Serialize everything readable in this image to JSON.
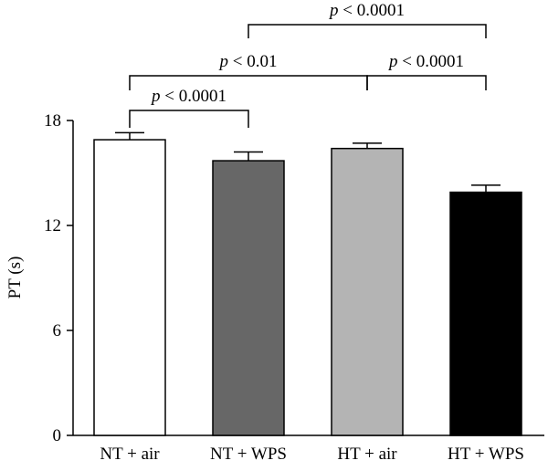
{
  "chart_data": {
    "type": "bar",
    "categories": [
      "NT + air",
      "NT + WPS",
      "HT + air",
      "HT + WPS"
    ],
    "values": [
      16.9,
      15.7,
      16.4,
      13.9
    ],
    "errors": [
      0.4,
      0.5,
      0.3,
      0.4
    ],
    "colors": [
      "#ffffff",
      "#676767",
      "#b4b4b4",
      "#000000"
    ],
    "title": "",
    "xlabel": "",
    "ylabel": "PT (s)",
    "ylim": [
      0,
      18
    ],
    "yticks": [
      0,
      6,
      12,
      18
    ],
    "ytick_labels": [
      "0",
      "6",
      "12",
      "18"
    ],
    "grid": false,
    "significance": [
      {
        "from": 0,
        "to": 1,
        "p_symbol": "p",
        "relation": "< 0.0001"
      },
      {
        "from": 0,
        "to": 2,
        "p_symbol": "p",
        "relation": "< 0.01"
      },
      {
        "from": 2,
        "to": 3,
        "p_symbol": "p",
        "relation": "< 0.0001"
      },
      {
        "from": 1,
        "to": 3,
        "p_symbol": "p",
        "relation": "< 0.0001"
      }
    ]
  }
}
